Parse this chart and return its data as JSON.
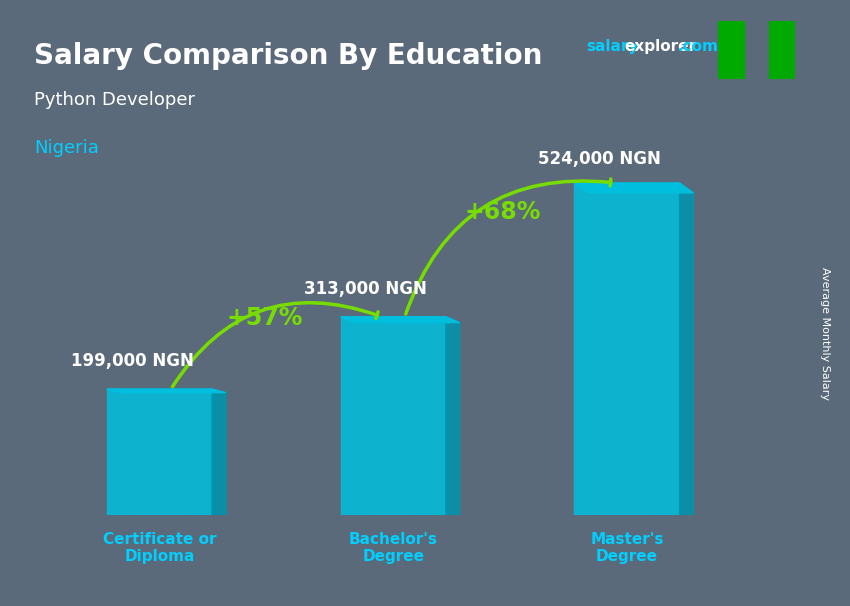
{
  "title": "Salary Comparison By Education",
  "subtitle": "Python Developer",
  "country": "Nigeria",
  "watermark": "salaryexplorer.com",
  "ylabel": "Average Monthly Salary",
  "categories": [
    "Certificate or\nDiploma",
    "Bachelor's\nDegree",
    "Master's\nDegree"
  ],
  "values": [
    199000,
    313000,
    524000
  ],
  "value_labels": [
    "199,000 NGN",
    "313,000 NGN",
    "524,000 NGN"
  ],
  "pct_labels": [
    "+57%",
    "+68%"
  ],
  "bar_color": "#00BFDF",
  "bar_color_dark": "#0095B0",
  "arrow_color": "#77DD00",
  "title_color": "#FFFFFF",
  "subtitle_color": "#FFFFFF",
  "country_color": "#00CFFF",
  "watermark_color_salary": "#00CFFF",
  "watermark_color_explorer": "#FFFFFF",
  "value_label_color": "#FFFFFF",
  "pct_label_color": "#77DD00",
  "ylabel_color": "#FFFFFF",
  "bg_color": "#5a6a7a",
  "tick_label_color": "#00CFFF",
  "ylim": [
    0,
    650000
  ],
  "bar_width": 0.45,
  "flag_green": "#00AA00",
  "flag_white": "#FFFFFF"
}
